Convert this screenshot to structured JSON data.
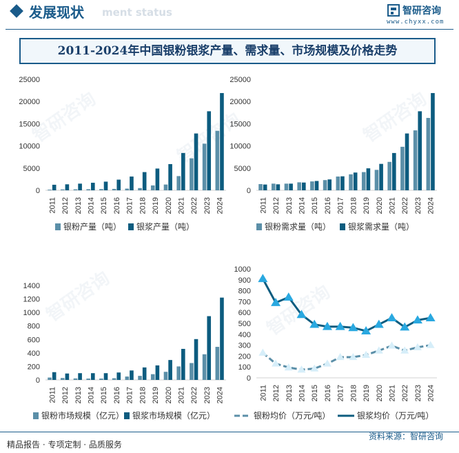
{
  "header": {
    "title": "发展现状",
    "ghost_text": "ment status",
    "brand": "智研咨询",
    "url": "www.chyxx.com"
  },
  "chart_title": "2011-2024年中国银粉银浆产量、需求量、市场规模及价格走势",
  "colors": {
    "light": "#5b8fa8",
    "dark": "#0d5c7f",
    "marker": "#29a8e0",
    "axis_text": "#333333"
  },
  "watermark": "智研咨询",
  "footer": {
    "left": "精品报告 · 专项定制 · 品质服务",
    "right": "资料来源：智研咨询"
  },
  "chart_data": [
    {
      "type": "bar",
      "categories": [
        "2011",
        "2012",
        "2013",
        "2014",
        "2015",
        "2016",
        "2017",
        "2018",
        "2019",
        "2020",
        "2021",
        "2022",
        "2023",
        "2024"
      ],
      "ylim": [
        0,
        25000
      ],
      "yticks": [
        0,
        5000,
        10000,
        15000,
        20000,
        25000
      ],
      "series": [
        {
          "name": "银粉产量（吨）",
          "values": [
            150,
            200,
            220,
            250,
            280,
            320,
            380,
            500,
            1100,
            1300,
            3200,
            7200,
            10500,
            13400
          ]
        },
        {
          "name": "银浆产量（吨）",
          "values": [
            1250,
            1350,
            1500,
            1700,
            1950,
            2400,
            3100,
            4100,
            4900,
            5900,
            8400,
            12800,
            17800,
            21900
          ]
        }
      ]
    },
    {
      "type": "bar",
      "categories": [
        "2011",
        "2012",
        "2013",
        "2014",
        "2015",
        "2016",
        "2017",
        "2018",
        "2019",
        "2020",
        "2021",
        "2022",
        "2023",
        "2024"
      ],
      "ylim": [
        0,
        25000
      ],
      "yticks": [
        0,
        5000,
        10000,
        15000,
        20000,
        25000
      ],
      "series": [
        {
          "name": "银粉需求量（吨）",
          "values": [
            1400,
            1500,
            1500,
            1800,
            2000,
            2300,
            3100,
            3600,
            4100,
            4600,
            6400,
            9800,
            13500,
            16300
          ]
        },
        {
          "name": "银浆需求量（吨）",
          "values": [
            1300,
            1350,
            1500,
            1750,
            2100,
            2450,
            3150,
            4000,
            4950,
            5950,
            8400,
            12800,
            17800,
            21900
          ]
        }
      ]
    },
    {
      "type": "bar",
      "categories": [
        "2011",
        "2012",
        "2013",
        "2014",
        "2015",
        "2016",
        "2017",
        "2018",
        "2019",
        "2020",
        "2021",
        "2022",
        "2023",
        "2024"
      ],
      "ylim": [
        0,
        1400
      ],
      "yticks": [
        0,
        200,
        400,
        600,
        800,
        1000,
        1200,
        1400
      ],
      "series": [
        {
          "name": "银粉市场规模（亿元）",
          "values": [
            35,
            28,
            22,
            20,
            20,
            25,
            50,
            60,
            85,
            120,
            200,
            250,
            380,
            490
          ]
        },
        {
          "name": "银浆市场规模（亿元）",
          "values": [
            115,
            95,
            100,
            100,
            100,
            110,
            140,
            185,
            215,
            295,
            460,
            605,
            945,
            1220
          ]
        }
      ]
    },
    {
      "type": "line",
      "categories": [
        "2011",
        "2012",
        "2013",
        "2014",
        "2015",
        "2016",
        "2017",
        "2018",
        "2019",
        "2020",
        "2021",
        "2022",
        "2023",
        "2024"
      ],
      "ylim": [
        0,
        1000
      ],
      "yticks": [
        0,
        100,
        200,
        300,
        400,
        500,
        600,
        700,
        800,
        900,
        1000
      ],
      "series": [
        {
          "name": "银粉均价（万元/吨）",
          "style": "dashed",
          "values": [
            230,
            130,
            95,
            75,
            85,
            130,
            190,
            190,
            210,
            250,
            295,
            250,
            280,
            300
          ]
        },
        {
          "name": "银浆均价（万元/吨）",
          "style": "solid",
          "values": [
            910,
            690,
            740,
            580,
            490,
            470,
            470,
            460,
            430,
            490,
            550,
            465,
            530,
            550
          ]
        }
      ]
    }
  ]
}
